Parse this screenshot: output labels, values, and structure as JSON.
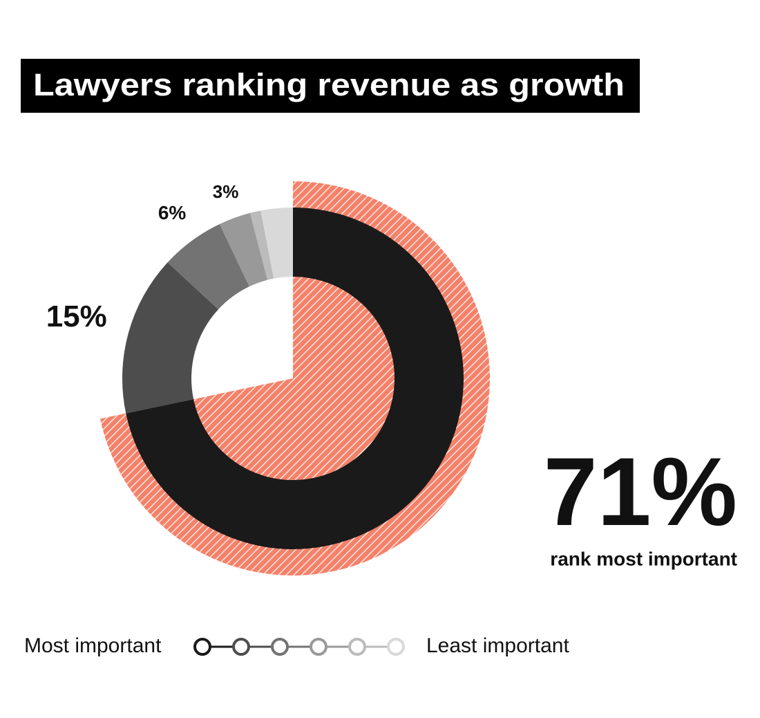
{
  "chart_data": {
    "type": "donut",
    "title": "Lawyers ranking revenue as growth",
    "values": [
      71,
      15,
      6,
      3,
      1,
      3
    ],
    "value_labels": [
      "71%",
      "15%",
      "6%",
      "3%",
      null,
      null
    ],
    "colors": [
      "#1a1a1a",
      "#4d4d4d",
      "#737373",
      "#999999",
      "#bbbbbb",
      "#d9d9d9"
    ],
    "highlight": {
      "index": 0,
      "color": "#f4826a"
    },
    "annotation": "rank most important",
    "legend": {
      "start": "Most important",
      "end": "Least important"
    }
  }
}
